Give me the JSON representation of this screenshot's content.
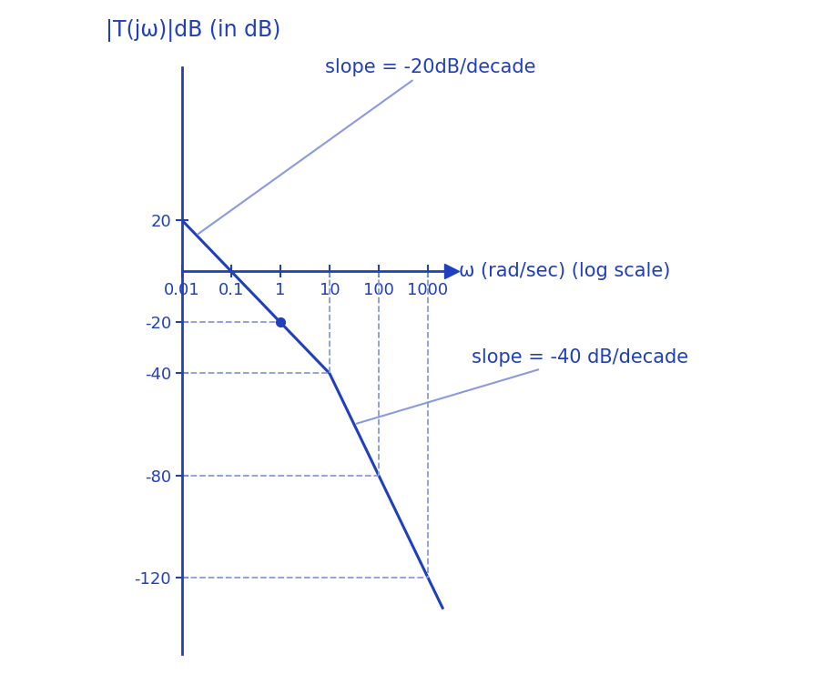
{
  "chart_data": {
    "type": "line",
    "y_label": "|T(jω)|dB (in dB)",
    "x_label": "ω (rad/sec) (log scale)",
    "log": "x",
    "x": [
      0.01,
      0.1,
      1,
      10,
      100,
      1000,
      2000
    ],
    "series": [
      {
        "name": "|T(jω)|",
        "color": "#1f3fbf",
        "values": [
          20,
          0,
          -20,
          -40,
          -80,
          -120,
          -132
        ]
      }
    ],
    "xlim": [
      0.01,
      3000
    ],
    "ylim": [
      -150,
      80
    ],
    "xticks": [
      0.01,
      0.1,
      1,
      10,
      100,
      1000
    ],
    "yticks": [
      -120,
      -80,
      -40,
      -20,
      20
    ],
    "annotations": [
      "slope = -20dB/decade",
      "slope = -40 dB/decade"
    ]
  }
}
